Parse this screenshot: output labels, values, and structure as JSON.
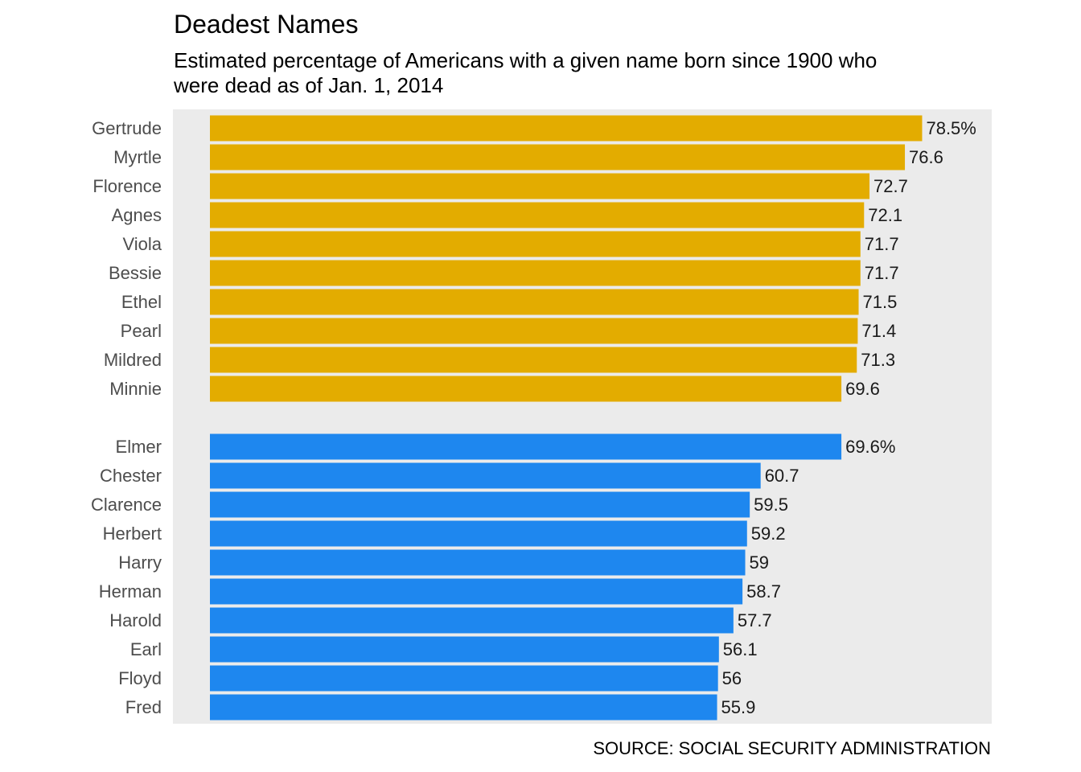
{
  "chart_data": {
    "type": "bar",
    "orientation": "horizontal",
    "title": "Deadest Names",
    "subtitle": "Estimated percentage of Americans with a given name born since 1900 who were dead as of Jan. 1, 2014",
    "caption": "SOURCE: SOCIAL SECURITY ADMINISTRATION",
    "xlim": [
      0,
      80
    ],
    "grid": false,
    "panel_background": "#ebebeb",
    "groups": [
      {
        "color": "#e3ac00",
        "categories": [
          "Gertrude",
          "Myrtle",
          "Florence",
          "Agnes",
          "Viola",
          "Bessie",
          "Ethel",
          "Pearl",
          "Mildred",
          "Minnie"
        ],
        "values": [
          78.5,
          76.6,
          72.7,
          72.1,
          71.7,
          71.7,
          71.5,
          71.4,
          71.3,
          69.6
        ],
        "labels": [
          "78.5%",
          "76.6",
          "72.7",
          "72.1",
          "71.7",
          "71.7",
          "71.5",
          "71.4",
          "71.3",
          "69.6"
        ]
      },
      {
        "color": "#1e87ef",
        "categories": [
          "Elmer",
          "Chester",
          "Clarence",
          "Herbert",
          "Harry",
          "Herman",
          "Harold",
          "Earl",
          "Floyd",
          "Fred"
        ],
        "values": [
          69.6,
          60.7,
          59.5,
          59.2,
          59,
          58.7,
          57.7,
          56.1,
          56,
          55.9
        ],
        "labels": [
          "69.6%",
          "60.7",
          "59.5",
          "59.2",
          "59",
          "58.7",
          "57.7",
          "56.1",
          "56",
          "55.9"
        ]
      }
    ]
  }
}
